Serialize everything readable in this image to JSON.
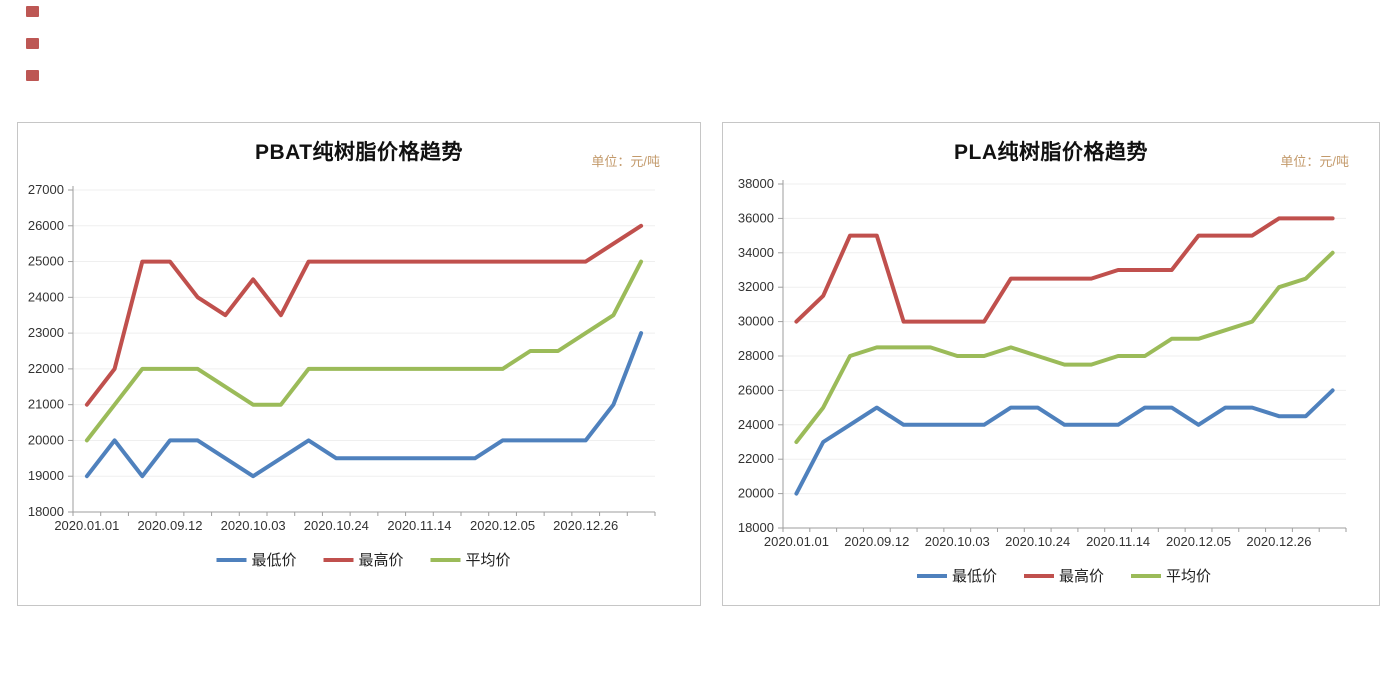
{
  "page": {
    "background": "#ffffff",
    "decoration_red_marks": 3
  },
  "colors": {
    "axis": "#9e9e9e",
    "gridline": "#efefef",
    "axis_text": "#333333",
    "unit_text": "#c39a6b",
    "series_blue": "#4F81BD",
    "series_red": "#C0504D",
    "series_green": "#9BBB59"
  },
  "chart_data": [
    {
      "type": "line",
      "title": "PBAT纯树脂价格趋势",
      "unit_label": "单位：元/吨",
      "ylim": [
        18000,
        27000
      ],
      "y_step": 1000,
      "n_points": 21,
      "x_label_interval": 3,
      "x_tick_labels": [
        "2020.01.01",
        "2020.09.12",
        "2020.10.03",
        "2020.10.24",
        "2020.11.14",
        "2020.12.05",
        "2020.12.26"
      ],
      "grid": true,
      "legend_position": "bottom",
      "series": [
        {
          "name": "最低价",
          "color": "#4F81BD",
          "values": [
            19000,
            20000,
            19000,
            20000,
            20000,
            19500,
            19000,
            19500,
            20000,
            19500,
            19500,
            19500,
            19500,
            19500,
            19500,
            20000,
            20000,
            20000,
            20000,
            21000,
            23000
          ]
        },
        {
          "name": "最高价",
          "color": "#C0504D",
          "values": [
            21000,
            22000,
            25000,
            25000,
            24000,
            23500,
            24500,
            23500,
            25000,
            25000,
            25000,
            25000,
            25000,
            25000,
            25000,
            25000,
            25000,
            25000,
            25000,
            25500,
            26000
          ]
        },
        {
          "name": "平均价",
          "color": "#9BBB59",
          "values": [
            20000,
            21000,
            22000,
            22000,
            22000,
            21500,
            21000,
            21000,
            22000,
            22000,
            22000,
            22000,
            22000,
            22000,
            22000,
            22000,
            22500,
            22500,
            23000,
            23500,
            25000
          ]
        }
      ]
    },
    {
      "type": "line",
      "title": "PLA纯树脂价格趋势",
      "unit_label": "单位：元/吨",
      "ylim": [
        18000,
        38000
      ],
      "y_step": 2000,
      "n_points": 21,
      "x_label_interval": 3,
      "x_tick_labels": [
        "2020.01.01",
        "2020.09.12",
        "2020.10.03",
        "2020.10.24",
        "2020.11.14",
        "2020.12.05",
        "2020.12.26"
      ],
      "grid": true,
      "legend_position": "bottom",
      "series": [
        {
          "name": "最低价",
          "color": "#4F81BD",
          "values": [
            20000,
            23000,
            24000,
            25000,
            24000,
            24000,
            24000,
            24000,
            25000,
            25000,
            24000,
            24000,
            24000,
            25000,
            25000,
            24000,
            25000,
            25000,
            24500,
            24500,
            26000
          ]
        },
        {
          "name": "最高价",
          "color": "#C0504D",
          "values": [
            30000,
            31500,
            35000,
            35000,
            30000,
            30000,
            30000,
            30000,
            32500,
            32500,
            32500,
            32500,
            33000,
            33000,
            33000,
            35000,
            35000,
            35000,
            36000,
            36000,
            36000
          ]
        },
        {
          "name": "平均价",
          "color": "#9BBB59",
          "values": [
            23000,
            25000,
            28000,
            28500,
            28500,
            28500,
            28000,
            28000,
            28500,
            28000,
            27500,
            27500,
            28000,
            28000,
            29000,
            29000,
            29500,
            30000,
            32000,
            32500,
            34000
          ]
        }
      ]
    }
  ]
}
